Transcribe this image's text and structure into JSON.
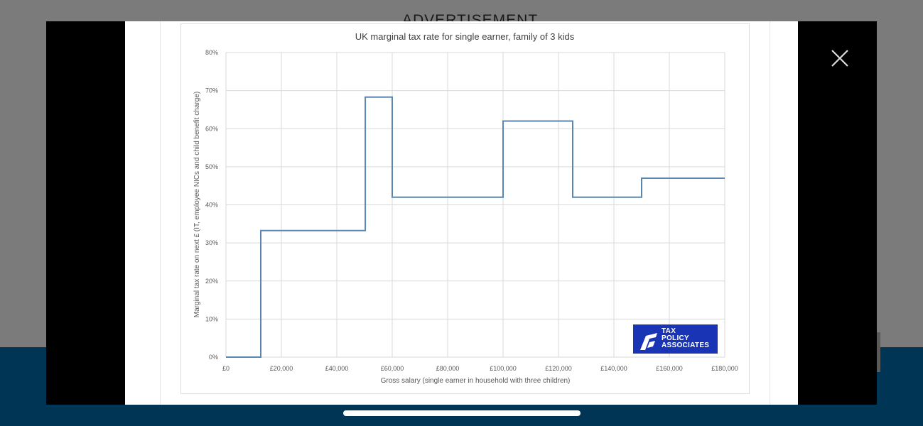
{
  "page": {
    "ad_label": "ADVERTISEMENT"
  },
  "logo": {
    "lines": [
      "TAX",
      "POLICY",
      "ASSOCIATES"
    ]
  },
  "colors": {
    "line": "#5b86b0",
    "grid": "#d9d9d9",
    "text": "#595959",
    "logo_bg": "#1a34b6",
    "band": "#003556"
  },
  "icons": {
    "close": "close-icon",
    "logo": "tax-policy-associates-logo-icon"
  },
  "chart_data": {
    "type": "line",
    "title": "UK marginal tax rate for single earner, family of 3 kids",
    "xlabel": "Gross salary (single earner in household with three children)",
    "ylabel": "Marginal tax rate on next £ (IT, employee NICs and child benefit charge)",
    "xlim": [
      0,
      180000
    ],
    "ylim": [
      0,
      80
    ],
    "grid": true,
    "legend": "none",
    "x_ticks": [
      0,
      20000,
      40000,
      60000,
      80000,
      100000,
      120000,
      140000,
      160000,
      180000
    ],
    "x_tick_labels": [
      "£0",
      "£20,000",
      "£40,000",
      "£60,000",
      "£80,000",
      "£100,000",
      "£120,000",
      "£140,000",
      "£160,000",
      "£180,000"
    ],
    "y_ticks": [
      0,
      10,
      20,
      30,
      40,
      50,
      60,
      70,
      80
    ],
    "y_tick_labels": [
      "0%",
      "10%",
      "20%",
      "30%",
      "40%",
      "50%",
      "60%",
      "70%",
      "80%"
    ],
    "series": [
      {
        "x": [
          0,
          12570,
          12570,
          50270,
          50270,
          50270,
          60000,
          60000,
          100000,
          100000,
          125140,
          125140,
          150000,
          150000,
          180000
        ],
        "y": [
          0,
          0,
          33.25,
          33.25,
          60,
          68.3,
          68.3,
          42,
          42,
          62,
          62,
          42,
          42,
          47,
          47
        ]
      }
    ]
  }
}
